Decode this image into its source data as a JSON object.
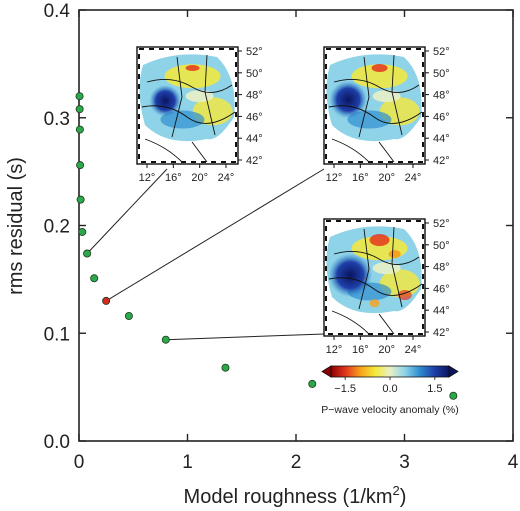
{
  "chart_data": {
    "type": "scatter",
    "xlabel": "Model roughness (1/km",
    "xlabel_sup": "2",
    "xlabel_end": ")",
    "ylabel": "rms residual (s)",
    "xlim": [
      0,
      4
    ],
    "ylim": [
      0,
      0.4
    ],
    "x_ticks": [
      "0",
      "1",
      "2",
      "3",
      "4"
    ],
    "y_ticks": [
      "0.0",
      "0.1",
      "0.2",
      "0.3",
      "0.4"
    ],
    "grid": false,
    "points": [
      {
        "x": 0.005,
        "y": 0.32
      },
      {
        "x": 0.006,
        "y": 0.308
      },
      {
        "x": 0.008,
        "y": 0.289
      },
      {
        "x": 0.01,
        "y": 0.256
      },
      {
        "x": 0.015,
        "y": 0.224
      },
      {
        "x": 0.03,
        "y": 0.194
      },
      {
        "x": 0.075,
        "y": 0.174
      },
      {
        "x": 0.14,
        "y": 0.151
      },
      {
        "x": 0.25,
        "y": 0.13,
        "highlight": true
      },
      {
        "x": 0.46,
        "y": 0.116
      },
      {
        "x": 0.8,
        "y": 0.094
      },
      {
        "x": 1.35,
        "y": 0.068
      },
      {
        "x": 2.15,
        "y": 0.053
      },
      {
        "x": 3.45,
        "y": 0.042
      }
    ],
    "point_color": "#2aa84a",
    "highlight_color": "#d9281f",
    "insets": [
      {
        "lat_labels": [
          "52°",
          "50°",
          "48°",
          "46°",
          "44°",
          "42°"
        ],
        "lon_labels": [
          "12°",
          "16°",
          "20°",
          "24°"
        ],
        "linked_point": 6
      },
      {
        "lat_labels": [
          "52°",
          "50°",
          "48°",
          "46°",
          "44°",
          "42°"
        ],
        "lon_labels": [
          "12°",
          "16°",
          "20°",
          "24°"
        ],
        "linked_point": 8
      },
      {
        "lat_labels": [
          "52°",
          "50°",
          "48°",
          "46°",
          "44°",
          "42°"
        ],
        "lon_labels": [
          "12°",
          "16°",
          "20°",
          "24°"
        ],
        "linked_point": 10
      }
    ],
    "colorbar": {
      "tick_labels": [
        "−1.5",
        "0.0",
        "1.5"
      ],
      "label": "P−wave velocity anomaly (%)",
      "colors": [
        "#8b0000",
        "#e3371e",
        "#f7a21b",
        "#f6e93a",
        "#e8f0c6",
        "#8fd3e8",
        "#2e8fd0",
        "#1f3fa8",
        "#0a1560"
      ]
    }
  }
}
